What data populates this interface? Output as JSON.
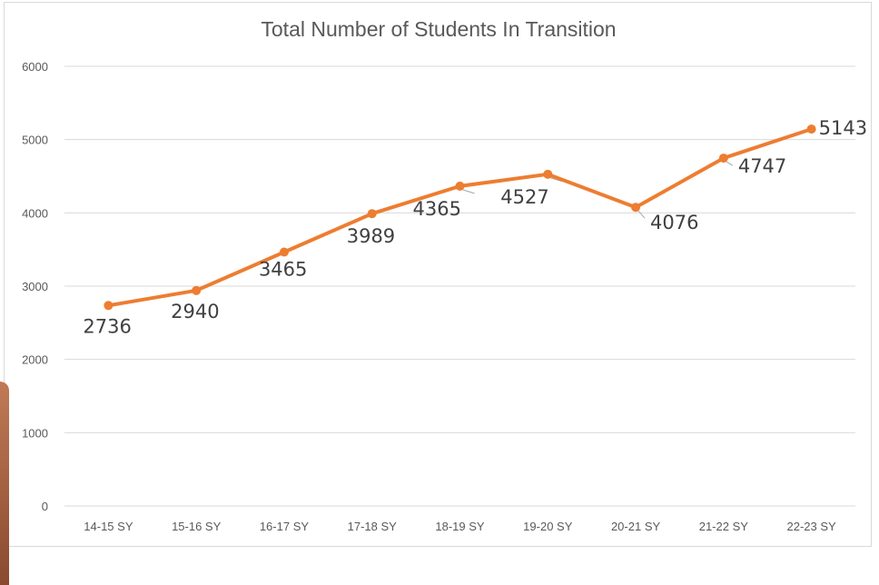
{
  "chart_data": {
    "type": "line",
    "title": "Total Number of Students In Transition",
    "xlabel": "",
    "ylabel": "",
    "categories": [
      "14-15 SY",
      "15-16 SY",
      "16-17 SY",
      "17-18 SY",
      "18-19 SY",
      "19-20 SY",
      "20-21 SY",
      "21-22 SY",
      "22-23 SY"
    ],
    "series": [
      {
        "values": [
          2736,
          2940,
          3465,
          3989,
          4365,
          4527,
          4076,
          4747,
          5143
        ]
      }
    ],
    "ylim": [
      0,
      6000
    ],
    "yticks": [
      "0",
      "1000",
      "2000",
      "3000",
      "4000",
      "5000",
      "6000"
    ],
    "grid": true,
    "legend": "none",
    "colors": {
      "line": "#ed7d31",
      "grid": "#d9d9d9",
      "text": "#595959"
    }
  }
}
